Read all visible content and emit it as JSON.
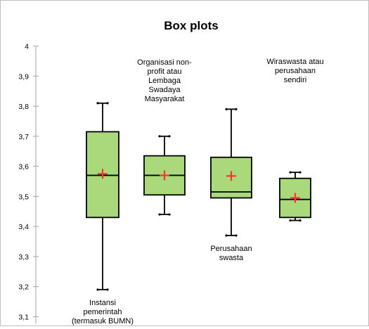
{
  "chart_data": {
    "type": "boxplot",
    "title": "Box plots",
    "ylim": [
      3.1,
      4.0
    ],
    "yticks": [
      "4",
      "3,9",
      "3,8",
      "3,7",
      "3,6",
      "3,5",
      "3,4",
      "3,3",
      "3,2",
      "3,1"
    ],
    "ytick_values": [
      4.0,
      3.9,
      3.8,
      3.7,
      3.6,
      3.5,
      3.4,
      3.3,
      3.2,
      3.1
    ],
    "categories": [
      [
        "Instansi",
        "pemerintah",
        "(termasuk BUMN)"
      ],
      [
        "Organisasi non-",
        "profit atau",
        "Lembaga",
        "Swadaya",
        "Masyarakat"
      ],
      [
        "Perusahaan",
        "swasta"
      ],
      [
        "Wiraswasta atau",
        "perusahaan",
        "sendiri"
      ]
    ],
    "label_position": [
      "below",
      "above",
      "below",
      "above"
    ],
    "boxes": [
      {
        "min": 3.19,
        "q1": 3.43,
        "median": 3.57,
        "q3": 3.715,
        "max": 3.81,
        "mean": 3.575
      },
      {
        "min": 3.44,
        "q1": 3.505,
        "median": 3.57,
        "q3": 3.635,
        "max": 3.7,
        "mean": 3.57
      },
      {
        "min": 3.37,
        "q1": 3.495,
        "median": 3.515,
        "q3": 3.63,
        "max": 3.79,
        "mean": 3.568
      },
      {
        "min": 3.42,
        "q1": 3.43,
        "median": 3.49,
        "q3": 3.56,
        "max": 3.58,
        "mean": 3.495
      }
    ],
    "colors": {
      "box_fill": "#a9d97a",
      "box_stroke": "#000000",
      "mean_marker": "#ff3333",
      "axis": "#a6a6a6"
    }
  }
}
